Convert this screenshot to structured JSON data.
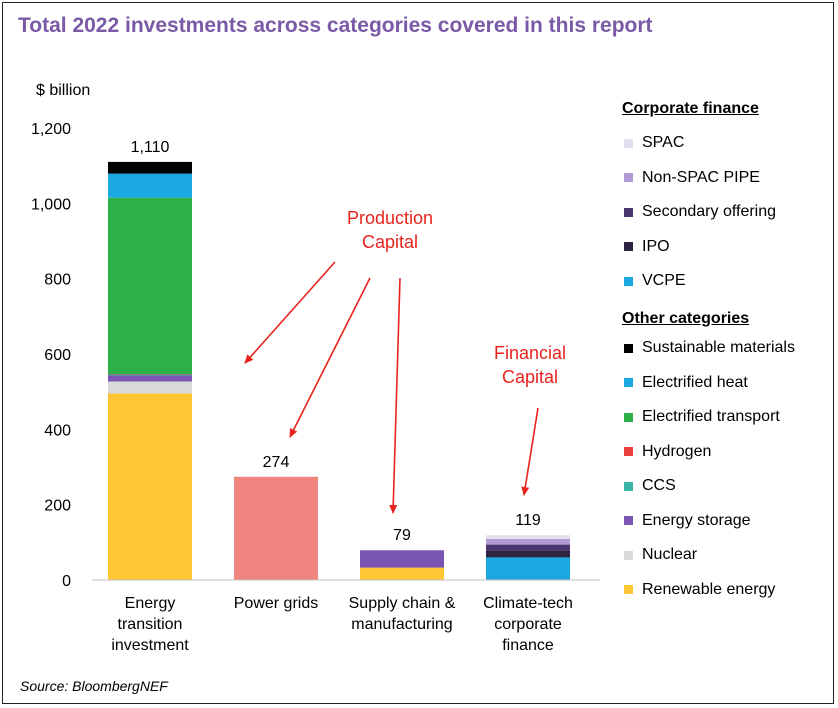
{
  "title": "Total 2022 investments across categories covered in this report",
  "source": "Source: BloombergNEF",
  "chart_data": {
    "type": "bar",
    "stacked": true,
    "ylabel": "$ billion",
    "ylim": [
      0,
      1200
    ],
    "yticks": [
      0,
      200,
      400,
      600,
      800,
      1000,
      1200
    ],
    "ytick_labels": [
      "0",
      "200",
      "400",
      "600",
      "800",
      "1,000",
      "1,200"
    ],
    "categories": [
      {
        "lines": [
          "Energy",
          "transition",
          "investment"
        ]
      },
      {
        "lines": [
          "Power grids"
        ]
      },
      {
        "lines": [
          "Supply chain &",
          "manufacturing"
        ]
      },
      {
        "lines": [
          "Climate-tech",
          "corporate",
          "finance"
        ]
      }
    ],
    "totals": [
      1110,
      274,
      79,
      119
    ],
    "total_labels": [
      "1,110",
      "274",
      "79",
      "119"
    ],
    "series": [
      {
        "name": "Renewable energy",
        "color": "#ffc533",
        "values": [
          495,
          0,
          33,
          0
        ]
      },
      {
        "name": "Nuclear",
        "color": "#d9d9d9",
        "values": [
          32,
          0,
          0,
          0
        ]
      },
      {
        "name": "Energy storage",
        "color": "#7b55b3",
        "values": [
          16,
          0,
          46,
          0
        ]
      },
      {
        "name": "CCS",
        "color": "#38b3a5",
        "values": [
          3,
          0,
          0,
          0
        ]
      },
      {
        "name": "Hydrogen",
        "color": "#e8403e",
        "values": [
          1,
          0,
          0,
          0
        ]
      },
      {
        "name": "Electrified transport",
        "color": "#2bb04a",
        "values": [
          468,
          0,
          0,
          0
        ]
      },
      {
        "name": "Electrified heat",
        "color": "#1ba7e0",
        "values": [
          64,
          0,
          0,
          0
        ]
      },
      {
        "name": "Sustainable materials",
        "color": "#000000",
        "values": [
          31,
          0,
          0,
          0
        ]
      },
      {
        "name": "Power grids",
        "color": "#f08580",
        "values": [
          0,
          274,
          0,
          0
        ]
      },
      {
        "name": "VCPE",
        "color": "#1ba7e0",
        "values": [
          0,
          0,
          0,
          60
        ]
      },
      {
        "name": "IPO",
        "color": "#2e2442",
        "values": [
          0,
          0,
          0,
          18
        ]
      },
      {
        "name": "Secondary offering",
        "color": "#4b3672",
        "values": [
          0,
          0,
          0,
          16
        ]
      },
      {
        "name": "Non-SPAC PIPE",
        "color": "#b29ad4",
        "values": [
          0,
          0,
          0,
          15
        ]
      },
      {
        "name": "SPAC",
        "color": "#e4dff0",
        "values": [
          0,
          0,
          0,
          10
        ]
      }
    ],
    "annotations": [
      {
        "lines": [
          "Production",
          "Capital"
        ],
        "color": "#e8231e"
      },
      {
        "lines": [
          "Financial",
          "Capital"
        ],
        "color": "#e8231e"
      }
    ]
  },
  "legend": {
    "corporate_heading": "Corporate finance",
    "corporate_items": [
      {
        "name": "SPAC",
        "color": "#e4dff0"
      },
      {
        "name": "Non-SPAC PIPE",
        "color": "#b29ad4"
      },
      {
        "name": "Secondary offering",
        "color": "#4b3672"
      },
      {
        "name": "IPO",
        "color": "#2e2442"
      },
      {
        "name": "VCPE",
        "color": "#1ba7e0"
      }
    ],
    "other_heading": "Other categories",
    "other_items": [
      {
        "name": "Sustainable materials",
        "color": "#000000"
      },
      {
        "name": "Electrified heat",
        "color": "#1ba7e0"
      },
      {
        "name": "Electrified transport",
        "color": "#2bb04a"
      },
      {
        "name": "Hydrogen",
        "color": "#e8403e"
      },
      {
        "name": "CCS",
        "color": "#38b3a5"
      },
      {
        "name": "Energy storage",
        "color": "#7b55b3"
      },
      {
        "name": "Nuclear",
        "color": "#d9d9d9"
      },
      {
        "name": "Renewable energy",
        "color": "#ffc533"
      }
    ]
  }
}
